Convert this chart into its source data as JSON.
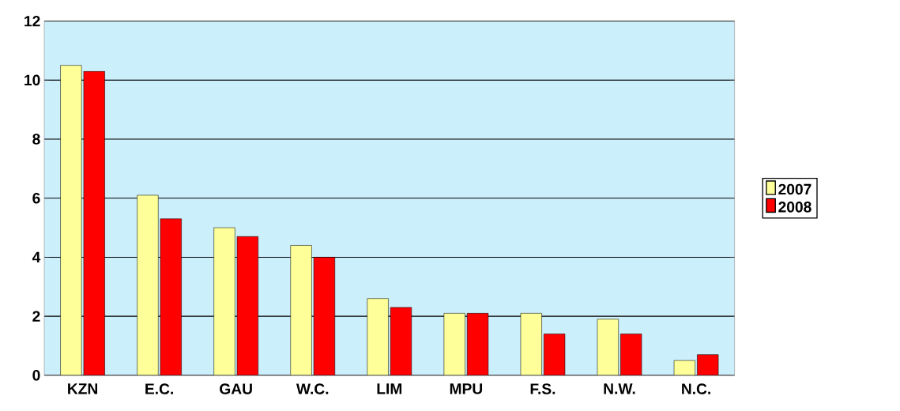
{
  "chart_data": {
    "type": "bar",
    "categories": [
      "KZN",
      "E.C.",
      "GAU",
      "W.C.",
      "LIM",
      "MPU",
      "F.S.",
      "N.W.",
      "N.C."
    ],
    "series": [
      {
        "name": "2007",
        "color": "#ffff99",
        "values": [
          10.5,
          6.1,
          5.0,
          4.4,
          2.6,
          2.1,
          2.1,
          1.9,
          0.5
        ]
      },
      {
        "name": "2008",
        "color": "#ff0000",
        "values": [
          10.3,
          5.3,
          4.7,
          4.0,
          2.3,
          2.1,
          1.4,
          1.4,
          0.7
        ]
      }
    ],
    "ylim": [
      0,
      12
    ],
    "yticks": [
      0,
      2,
      4,
      6,
      8,
      10,
      12
    ],
    "grid": "y",
    "legend": "right"
  }
}
